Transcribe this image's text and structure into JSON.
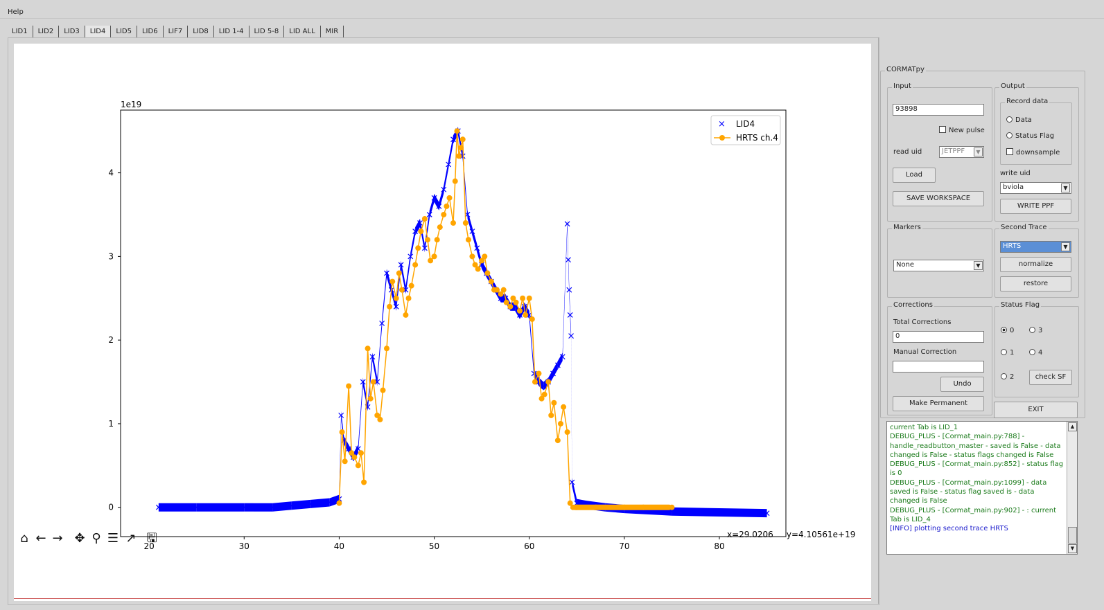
{
  "menu": {
    "help": "Help"
  },
  "tabs": [
    {
      "label": "LID1",
      "active": false
    },
    {
      "label": "LID2",
      "active": false
    },
    {
      "label": "LID3",
      "active": false
    },
    {
      "label": "LID4",
      "active": true
    },
    {
      "label": "LID5",
      "active": false
    },
    {
      "label": "LID6",
      "active": false
    },
    {
      "label": "LIF7",
      "active": false
    },
    {
      "label": "LID8",
      "active": false
    },
    {
      "label": "LID 1-4",
      "active": false
    },
    {
      "label": "LID 5-8",
      "active": false
    },
    {
      "label": "LID ALL",
      "active": false
    },
    {
      "label": "MIR",
      "active": false
    }
  ],
  "plot_toolbar": {
    "icons": [
      "home-icon",
      "back-arrow-icon",
      "forward-arrow-icon",
      "pan-icon",
      "zoom-icon",
      "subplots-config-icon",
      "edit-axis-icon",
      "save-icon"
    ],
    "coords": "x=29.0206     y=4.10561e+19"
  },
  "chart_data": {
    "type": "scatter",
    "offset_label": "1e19",
    "xlim": [
      17,
      87
    ],
    "ylim": [
      -0.35,
      4.75
    ],
    "x_ticks": [
      "20",
      "30",
      "40",
      "50",
      "60",
      "70",
      "80"
    ],
    "y_ticks": [
      "0",
      "1",
      "2",
      "3",
      "4"
    ],
    "grid": false,
    "legend_position": "top-right",
    "series": [
      {
        "name": "LID4",
        "marker": "x",
        "color": "#0000ff",
        "x": [
          21,
          25,
          30,
          31,
          33,
          35,
          37,
          39,
          40,
          40.2,
          40.5,
          41,
          41.5,
          42,
          42.5,
          43,
          43.5,
          44,
          44.5,
          45,
          45.5,
          46,
          46.5,
          47,
          47.5,
          48,
          48.5,
          49,
          49.5,
          50,
          50.5,
          51,
          51.5,
          52,
          52.5,
          53,
          53.5,
          54,
          54.5,
          55,
          55.5,
          56,
          56.5,
          57,
          57.5,
          58,
          58.5,
          59,
          59.5,
          60,
          60.5,
          61,
          61.5,
          62,
          62.5,
          63,
          63.5,
          64,
          64.1,
          64.2,
          64.3,
          64.4,
          64.5,
          65,
          66,
          68,
          70,
          75,
          80,
          85
        ],
        "y": [
          0,
          0,
          0,
          0,
          0,
          0.02,
          0.04,
          0.06,
          0.1,
          1.1,
          0.8,
          0.7,
          0.6,
          0.7,
          1.5,
          1.2,
          1.8,
          1.5,
          2.2,
          2.8,
          2.6,
          2.4,
          2.9,
          2.6,
          3.0,
          3.3,
          3.4,
          3.1,
          3.5,
          3.7,
          3.6,
          3.8,
          4.1,
          4.4,
          4.5,
          4.2,
          3.5,
          3.3,
          3.1,
          2.9,
          2.8,
          2.7,
          2.6,
          2.5,
          2.5,
          2.4,
          2.4,
          2.3,
          2.4,
          2.3,
          1.6,
          1.5,
          1.45,
          1.5,
          1.6,
          1.7,
          1.8,
          3.39,
          2.96,
          2.6,
          2.3,
          2.05,
          0.3,
          0.05,
          0.03,
          0,
          -0.02,
          -0.05,
          -0.06,
          -0.07
        ]
      },
      {
        "name": "HRTS ch.4",
        "marker": "o",
        "color": "#ffa500",
        "x": [
          40,
          40.3,
          40.6,
          41,
          41.3,
          41.6,
          42,
          42.3,
          42.6,
          43,
          43.3,
          43.6,
          44,
          44.3,
          44.6,
          45,
          45.3,
          45.6,
          46,
          46.3,
          46.6,
          47,
          47.3,
          47.6,
          48,
          48.3,
          48.6,
          49,
          49.3,
          49.6,
          50,
          50.3,
          50.6,
          51,
          51.3,
          51.6,
          52,
          52.2,
          52.4,
          52.6,
          52.8,
          53,
          53.3,
          53.6,
          54,
          54.3,
          54.6,
          55,
          55.3,
          55.6,
          56,
          56.3,
          56.6,
          57,
          57.3,
          57.6,
          58,
          58.3,
          58.6,
          59,
          59.3,
          59.6,
          60,
          60.3,
          60.6,
          61,
          61.3,
          61.6,
          62,
          62.3,
          62.6,
          63,
          63.3,
          63.6,
          64,
          64.3,
          64.6,
          65,
          67,
          70,
          72,
          75
        ],
        "y": [
          0.05,
          0.9,
          0.55,
          1.45,
          0.65,
          0.6,
          0.5,
          0.65,
          0.3,
          1.9,
          1.3,
          1.5,
          1.1,
          1.05,
          1.4,
          1.9,
          2.4,
          2.7,
          2.5,
          2.8,
          2.6,
          2.3,
          2.5,
          2.65,
          2.9,
          3.1,
          3.3,
          3.45,
          3.2,
          2.95,
          3.0,
          3.2,
          3.35,
          3.5,
          3.6,
          3.7,
          3.4,
          3.9,
          4.5,
          4.2,
          4.3,
          4.4,
          3.4,
          3.2,
          3.0,
          2.9,
          2.85,
          2.95,
          3.0,
          2.8,
          2.7,
          2.6,
          2.6,
          2.55,
          2.6,
          2.45,
          2.4,
          2.5,
          2.45,
          2.35,
          2.5,
          2.3,
          2.5,
          2.25,
          1.5,
          1.6,
          1.3,
          1.35,
          1.5,
          1.1,
          1.25,
          0.8,
          1.0,
          1.2,
          0.9,
          0.05,
          0.0,
          0.0,
          0.0,
          0.0,
          0.0,
          0.0
        ]
      }
    ]
  },
  "panel": {
    "title": "CORMATpy",
    "input": {
      "title": "Input",
      "pulse_value": "93898",
      "new_pulse": "New pulse",
      "read_uid_label": "read uid",
      "read_uid_value": "JETPPF",
      "load": "Load",
      "save_workspace": "SAVE WORKSPACE"
    },
    "output": {
      "title": "Output",
      "record_title": "Record data",
      "data": "Data",
      "status_flag": "Status Flag",
      "downsample": "downsample",
      "write_uid_label": "write uid",
      "write_uid_value": "bviola",
      "write_ppf": "WRITE PPF"
    },
    "markers": {
      "title": "Markers",
      "value": "None"
    },
    "second_trace": {
      "title": "Second Trace",
      "value": "HRTS",
      "normalize": "normalize",
      "restore": "restore"
    },
    "corrections": {
      "title": "Corrections",
      "total_label": "Total Corrections",
      "total_value": "0",
      "manual_label": "Manual Correction",
      "manual_value": "",
      "undo": "Undo",
      "make_permanent": "Make Permanent"
    },
    "status_flag": {
      "title": "Status Flag",
      "opt0": "0",
      "opt1": "1",
      "opt2": "2",
      "opt3": "3",
      "opt4": "4",
      "selected": "0",
      "check_sf": "check SF"
    },
    "exit": "EXIT",
    "log": [
      {
        "text": "current Tab is LID_1",
        "kind": "debug"
      },
      {
        "text": "DEBUG_PLUS - [Cormat_main.py:788] - handle_readbutton_master - saved is False - data changed is False - status flags changed is False",
        "kind": "debug"
      },
      {
        "text": "DEBUG_PLUS - [Cormat_main.py:852] - status flag is 0",
        "kind": "debug"
      },
      {
        "text": "DEBUG_PLUS - [Cormat_main.py:1099] - data saved is False - status flag saved is - data changed is False",
        "kind": "debug"
      },
      {
        "text": "DEBUG_PLUS - [Cormat_main.py:902] - : current Tab is LID_4",
        "kind": "debug"
      },
      {
        "text": "[INFO] plotting second trace HRTS",
        "kind": "info"
      }
    ]
  }
}
